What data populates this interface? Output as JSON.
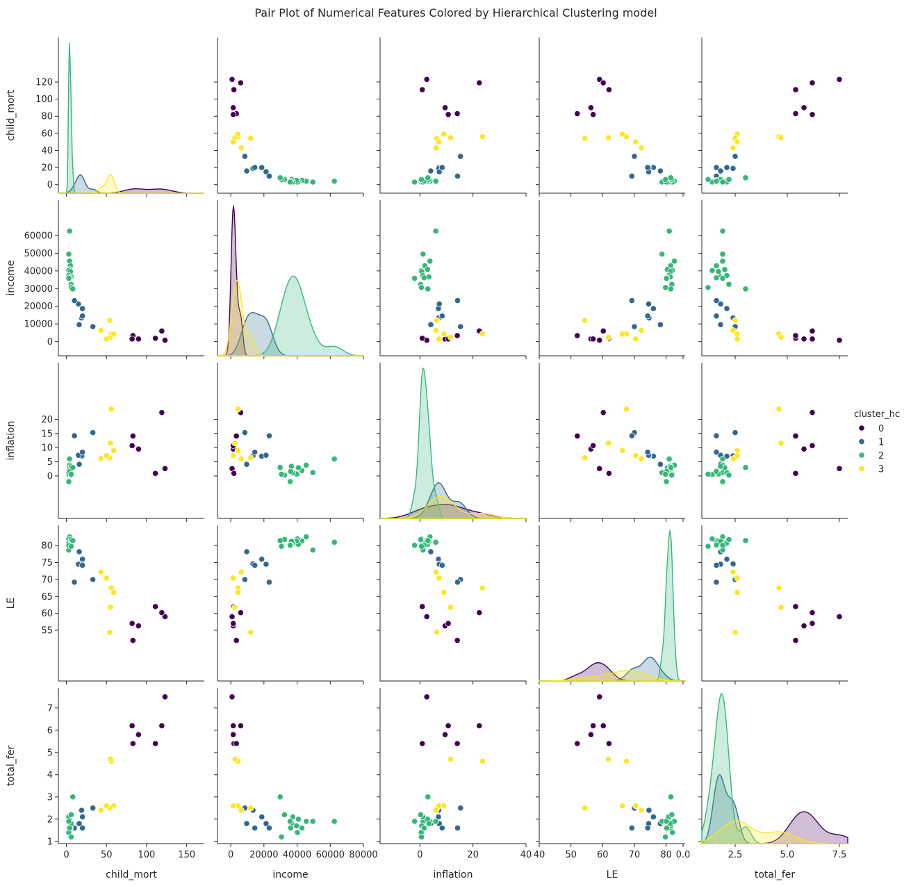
{
  "chart_data": {
    "type": "pairplot",
    "title": "Pair Plot of Numerical Features Colored by Hierarchical Clustering model",
    "variables": [
      "child_mort",
      "income",
      "inflation",
      "LE",
      "total_fer"
    ],
    "axis_ranges": {
      "child_mort": [
        -10,
        172
      ],
      "income": [
        -8000,
        80000
      ],
      "inflation": [
        -15,
        40
      ],
      "LE": [
        40,
        86
      ],
      "total_fer": [
        0.9,
        7.9
      ]
    },
    "ticks": {
      "child_mort": [
        0,
        20,
        40,
        60,
        80,
        100,
        120
      ],
      "income": [
        0,
        10000,
        20000,
        30000,
        40000,
        50000,
        60000
      ],
      "inflation": [
        0,
        5,
        10,
        15,
        20
      ],
      "LE": [
        55,
        60,
        65,
        70,
        75,
        80
      ],
      "total_fer": [
        1,
        2,
        3,
        4,
        5,
        6,
        7
      ]
    },
    "bottom_ticks": {
      "child_mort": [
        0,
        50,
        100,
        150
      ],
      "income": [
        0,
        20000,
        40000,
        60000,
        80000
      ],
      "inflation": [
        0,
        20,
        40
      ],
      "LE": [
        40,
        50,
        60,
        70,
        80
      ],
      "total_fer": [
        0.0,
        2.5,
        5.0,
        7.5
      ]
    },
    "bottom_tick_labels": {
      "total_fer": [
        "0.0",
        "2.5",
        "5.0",
        "7.5"
      ]
    },
    "legend": {
      "title": "cluster_hc",
      "placement": "right",
      "entries": [
        {
          "label": "0",
          "color": "#440154"
        },
        {
          "label": "1",
          "color": "#31688e"
        },
        {
          "label": "2",
          "color": "#35b779"
        },
        {
          "label": "3",
          "color": "#fde725"
        }
      ]
    },
    "series": [
      {
        "name": "0",
        "color": "#440154",
        "points": [
          [
            123,
            800,
            2.6,
            59.0,
            7.5
          ],
          [
            119,
            6000,
            22.4,
            60.2,
            6.2
          ],
          [
            111,
            1900,
            0.9,
            62.0,
            5.4
          ],
          [
            90,
            1500,
            9.5,
            56.3,
            5.8
          ],
          [
            83,
            3400,
            14.1,
            52.0,
            5.4
          ],
          [
            82,
            1500,
            10.7,
            57.0,
            6.2
          ]
        ]
      },
      {
        "name": "1",
        "color": "#31688e",
        "points": [
          [
            33,
            8500,
            15.3,
            70.0,
            2.5
          ],
          [
            20,
            18700,
            7.0,
            76.0,
            2.1
          ],
          [
            19,
            13400,
            7.1,
            74.6,
            2.4
          ],
          [
            15,
            21300,
            7.3,
            74.5,
            1.8
          ],
          [
            20,
            14500,
            8.4,
            74.2,
            1.6
          ],
          [
            10,
            23200,
            14.2,
            69.2,
            1.6
          ],
          [
            16,
            9600,
            4.1,
            78.2,
            1.8
          ]
        ]
      },
      {
        "name": "2",
        "color": "#35b779",
        "points": [
          [
            4,
            62500,
            6.0,
            81.0,
            1.9
          ],
          [
            3,
            49500,
            1.2,
            78.7,
            1.9
          ],
          [
            4,
            45500,
            3.8,
            82.6,
            1.9
          ],
          [
            5,
            42900,
            1.9,
            81.4,
            1.6
          ],
          [
            4,
            40800,
            2.9,
            80.4,
            2.0
          ],
          [
            3,
            40200,
            0.5,
            82.0,
            1.4
          ],
          [
            5,
            39600,
            0.7,
            81.4,
            1.7
          ],
          [
            3,
            37400,
            1.1,
            80.8,
            2.1
          ],
          [
            6,
            36600,
            3.4,
            81.3,
            1.8
          ],
          [
            4,
            36100,
            1.6,
            80.2,
            1.6
          ],
          [
            3,
            35800,
            -2.0,
            80.1,
            1.9
          ],
          [
            6,
            32400,
            0.3,
            81.8,
            2.2
          ],
          [
            6,
            30600,
            0.6,
            79.8,
            1.2
          ],
          [
            8,
            29800,
            3.0,
            81.5,
            3.0
          ]
        ]
      },
      {
        "name": "3",
        "color": "#fde725",
        "points": [
          [
            56,
            4400,
            23.6,
            67.5,
            4.6
          ],
          [
            55,
            2500,
            11.6,
            61.8,
            4.7
          ],
          [
            59,
            4300,
            9.0,
            66.2,
            2.6
          ],
          [
            54,
            12000,
            6.4,
            54.4,
            2.5
          ],
          [
            50,
            1500,
            7.2,
            70.4,
            2.6
          ],
          [
            43,
            6300,
            6.1,
            72.2,
            2.4
          ]
        ]
      }
    ],
    "diagonal": "kde"
  }
}
